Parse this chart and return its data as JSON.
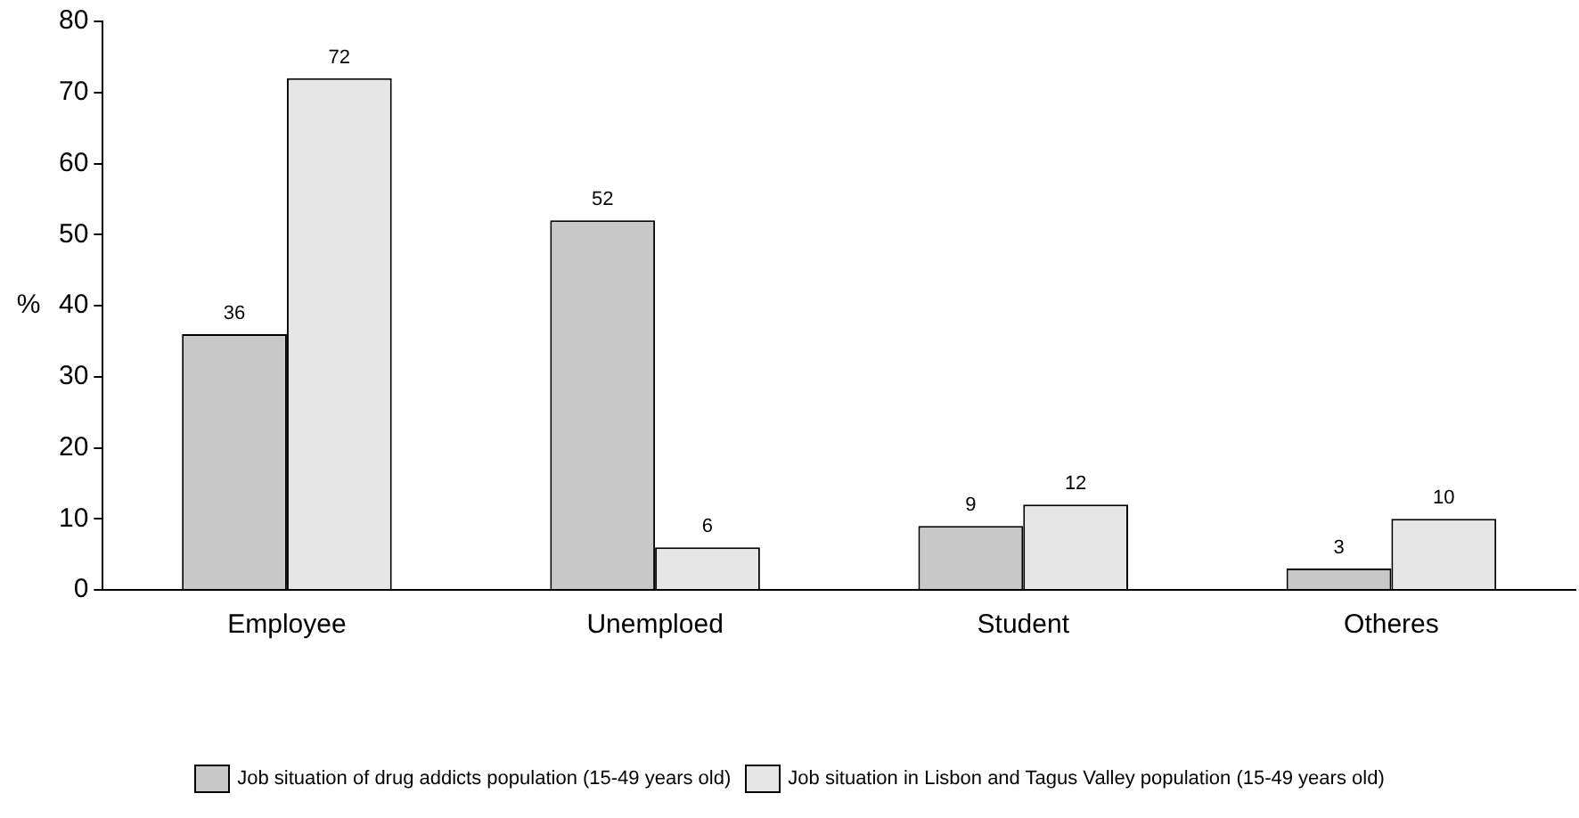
{
  "chart_data": {
    "type": "bar",
    "ylabel": "%",
    "categories": [
      "Employee",
      "Unemploed",
      "Student",
      "Otheres"
    ],
    "series": [
      {
        "name": "Job situation of drug addicts population (15-49 years old)",
        "color": "#c8c8c8",
        "values": [
          36,
          52,
          9,
          3
        ]
      },
      {
        "name": "Job situation in Lisbon and Tagus Valley population (15-49 years old)",
        "color": "#e6e6e6",
        "values": [
          72,
          6,
          12,
          10
        ]
      }
    ],
    "ylim": [
      0,
      80
    ],
    "yticks": [
      0,
      10,
      20,
      30,
      40,
      50,
      60,
      70,
      80
    ],
    "grid": false,
    "legend": "bottom",
    "data_labels": true
  }
}
